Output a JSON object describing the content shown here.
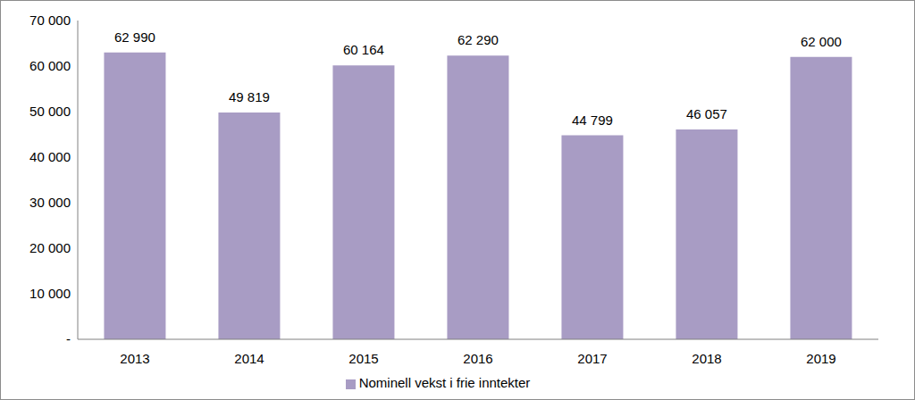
{
  "chart_data": {
    "type": "bar",
    "categories": [
      "2013",
      "2014",
      "2015",
      "2016",
      "2017",
      "2018",
      "2019"
    ],
    "series": [
      {
        "name": "Nominell vekst i frie inntekter",
        "color": "#a89cc4",
        "values": [
          62990,
          49819,
          60164,
          62290,
          44799,
          46057,
          62000
        ],
        "value_labels": [
          "62 990",
          "49 819",
          "60 164",
          "62 290",
          "44 799",
          "46 057",
          "62 000"
        ]
      }
    ],
    "ylim": [
      0,
      70000
    ],
    "yticks": [
      {
        "value": 0,
        "label": "-"
      },
      {
        "value": 10000,
        "label": "10 000"
      },
      {
        "value": 20000,
        "label": "20 000"
      },
      {
        "value": 30000,
        "label": "30 000"
      },
      {
        "value": 40000,
        "label": "40 000"
      },
      {
        "value": 50000,
        "label": "50 000"
      },
      {
        "value": 60000,
        "label": "60 000"
      },
      {
        "value": 70000,
        "label": "70 000"
      }
    ],
    "grid": false,
    "legend": "bottom",
    "data_labels": true
  }
}
